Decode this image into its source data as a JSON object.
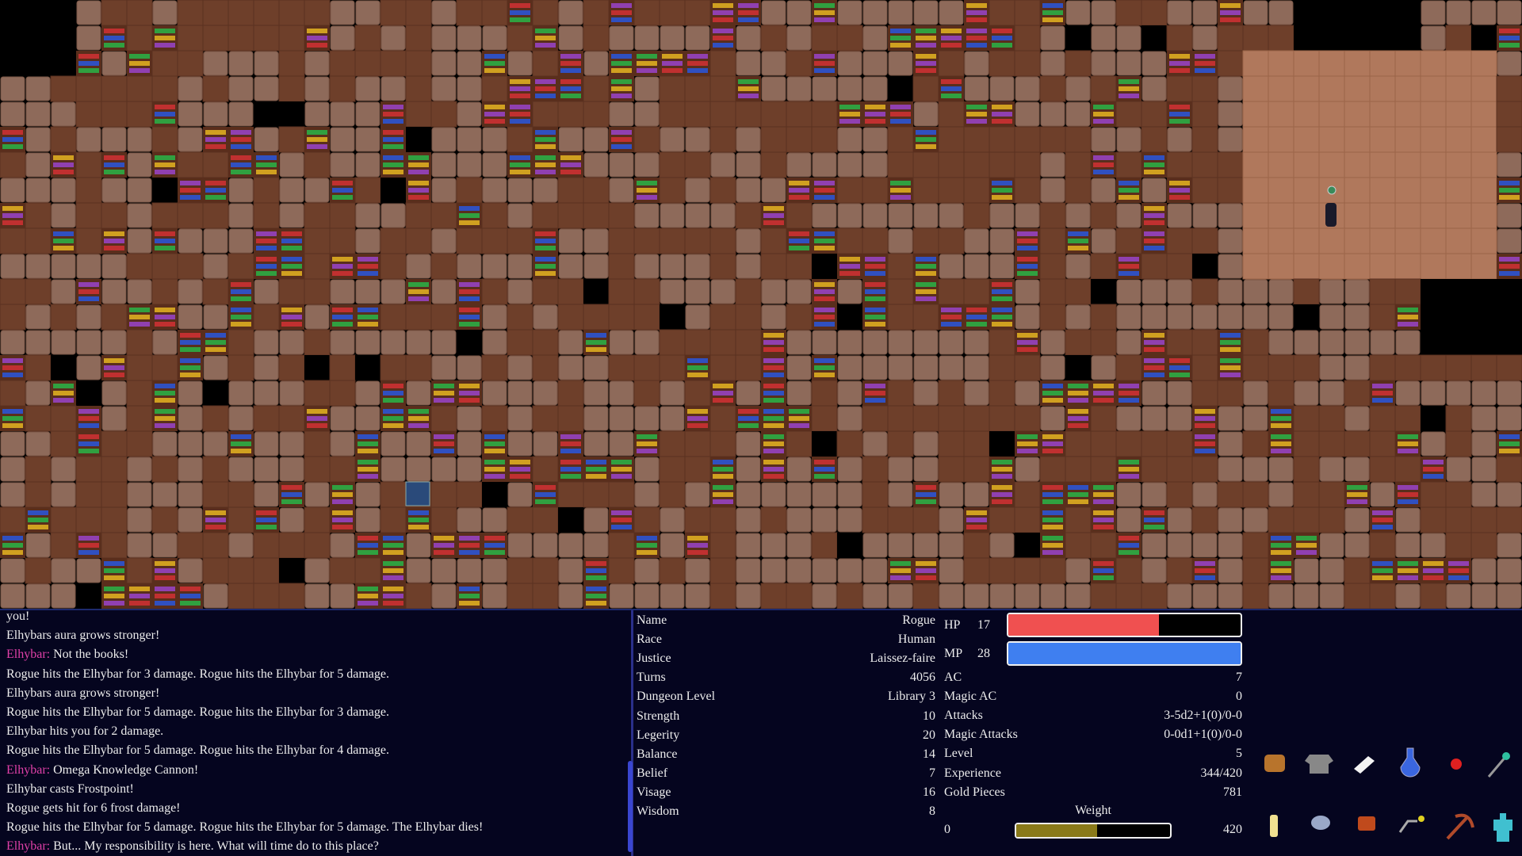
{
  "log": {
    "lines": [
      {
        "text": "you!"
      },
      {
        "text": "Elhybars aura grows stronger!"
      },
      {
        "speaker": "Elhybar:",
        "text": " Not the books!"
      },
      {
        "text": "Rogue hits the Elhybar for 3 damage. Rogue hits the Elhybar for 5 damage."
      },
      {
        "text": "Elhybars aura grows stronger!"
      },
      {
        "text": "Rogue hits the Elhybar for 5 damage. Rogue hits the Elhybar for 3 damage."
      },
      {
        "text": "Elhybar hits you for 2 damage."
      },
      {
        "text": "Rogue hits the Elhybar for 5 damage. Rogue hits the Elhybar for 4 damage."
      },
      {
        "speaker": "Elhybar:",
        "text": " Omega Knowledge Cannon!"
      },
      {
        "text": "Elhybar casts Frostpoint!"
      },
      {
        "text": "Rogue gets hit for 6 frost damage!"
      },
      {
        "text": "Rogue hits the Elhybar for 5 damage. Rogue hits the Elhybar for 5 damage. The Elhybar dies!"
      },
      {
        "speaker": "Elhybar:",
        "text": " But... My responsibility is here. What will time do to this place?"
      }
    ]
  },
  "stats": [
    {
      "label": "Name",
      "value": "Rogue"
    },
    {
      "label": "Race",
      "value": "Human"
    },
    {
      "label": "Justice",
      "value": "Laissez-faire"
    },
    {
      "label": "Turns",
      "value": 4056
    },
    {
      "label": "Dungeon Level",
      "value": "Library 3"
    },
    {
      "label": "Strength",
      "value": 10
    },
    {
      "label": "Legerity",
      "value": 20
    },
    {
      "label": "Balance",
      "value": 14
    },
    {
      "label": "Belief",
      "value": 7
    },
    {
      "label": "Visage",
      "value": 16
    },
    {
      "label": "Wisdom",
      "value": 8
    }
  ],
  "bars": [
    {
      "label": "HP",
      "value": 17,
      "fill_percent": 65,
      "color": "#f05050"
    },
    {
      "label": "MP",
      "value": 28,
      "fill_percent": 100,
      "color": "#3f7ff0"
    }
  ],
  "combat": [
    {
      "label": "AC",
      "value": 7
    },
    {
      "label": "Magic AC",
      "value": 0
    },
    {
      "label": "Attacks",
      "value": "3-5d2+1(0)/0-0"
    },
    {
      "label": "Magic Attacks",
      "value": "0-0d1+1(0)/0-0"
    },
    {
      "label": "Level",
      "value": 5
    },
    {
      "label": "Experience",
      "value": "344/420"
    },
    {
      "label": "Gold Pieces",
      "value": 781
    }
  ],
  "weight": {
    "label": "Weight",
    "min": 0,
    "max": 420,
    "value": 220,
    "color": "#8a7a1a"
  }
}
